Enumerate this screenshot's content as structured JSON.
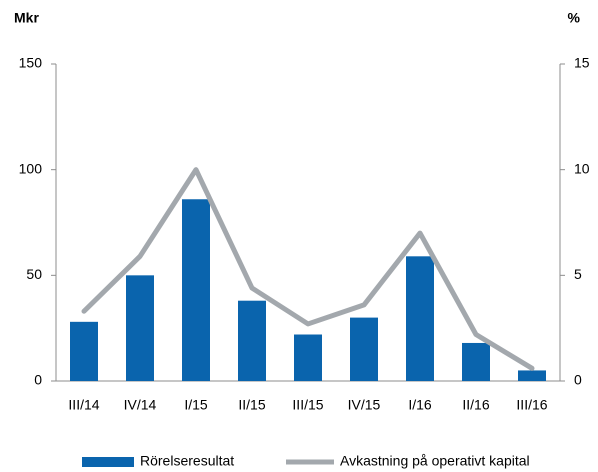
{
  "chart_data": {
    "type": "bar",
    "y_label": "Mkr",
    "y2_label": "%",
    "categories": [
      "III/14",
      "IV/14",
      "I/15",
      "II/15",
      "III/15",
      "IV/15",
      "I/16",
      "II/16",
      "III/16"
    ],
    "series": [
      {
        "name": "Rörelseresultat",
        "color": "#0a64ad",
        "type": "bar",
        "values": [
          28,
          50,
          86,
          38,
          22,
          30,
          59,
          18,
          5
        ]
      },
      {
        "name": "Avkastning på operativt kapital",
        "color": "#a3a8ad",
        "type": "line",
        "axis": "y2",
        "values": [
          3.3,
          5.9,
          10.0,
          4.4,
          2.7,
          3.6,
          7.0,
          2.2,
          0.6
        ]
      }
    ],
    "ylim": [
      0,
      150
    ],
    "yticks": [
      0,
      50,
      100,
      150
    ],
    "y2lim": [
      0,
      15
    ],
    "y2ticks": [
      0,
      5,
      10,
      15
    ]
  }
}
